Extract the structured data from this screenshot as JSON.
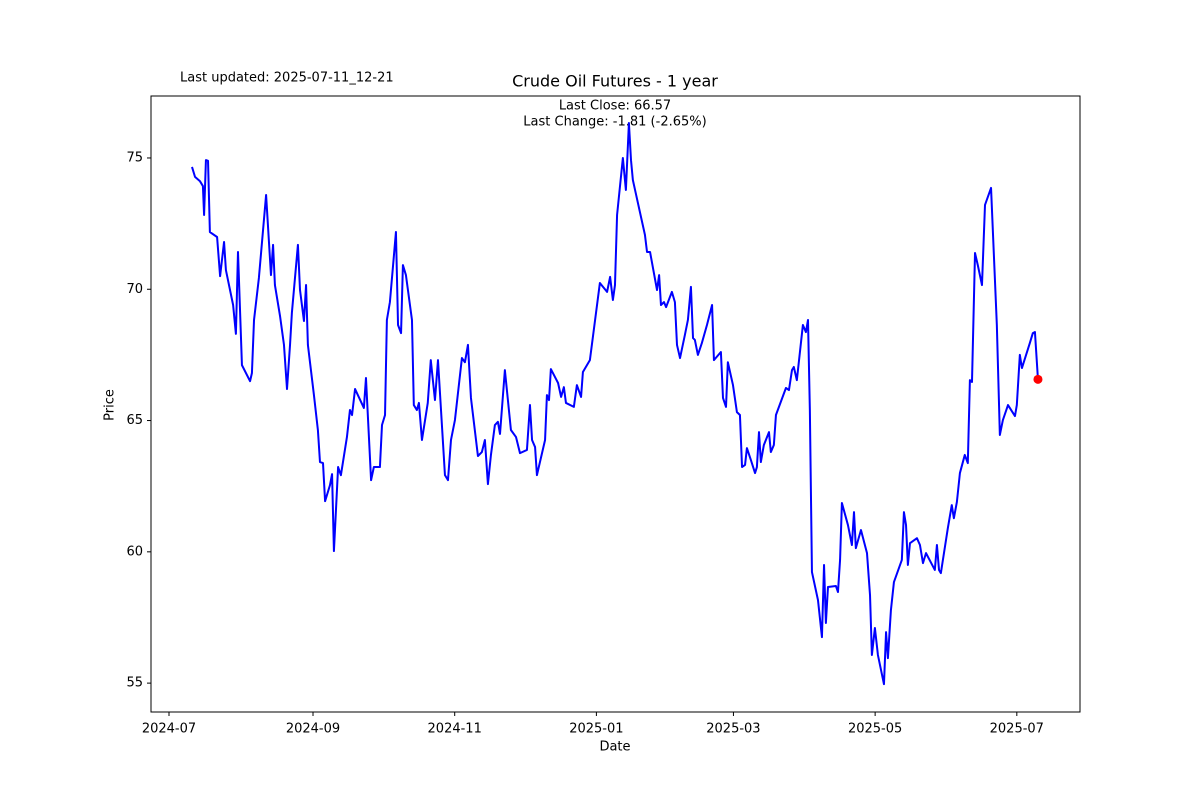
{
  "chart_data": {
    "type": "line",
    "title": "Crude Oil Futures - 1 year",
    "x_label": "Date",
    "y_label": "Price",
    "annotations": [
      "Last updated: 2025-07-11_12-21",
      "Last Close: 66.57",
      "Last Change: -1.81 (-2.65%)"
    ],
    "color": "#0000ff",
    "last_point_color": "#ff0000",
    "xlim": [
      -7.75,
      392.2
    ],
    "ylim": [
      53.9,
      77.36
    ],
    "xticks": [
      {
        "value": 0,
        "label": "2024-07"
      },
      {
        "value": 62,
        "label": "2024-09"
      },
      {
        "value": 123,
        "label": "2024-11"
      },
      {
        "value": 184,
        "label": "2025-01"
      },
      {
        "value": 243,
        "label": "2025-03"
      },
      {
        "value": 304,
        "label": "2025-05"
      },
      {
        "value": 365,
        "label": "2025-07"
      }
    ],
    "yticks": [
      55,
      60,
      65,
      70,
      75
    ],
    "x": [
      9.9,
      11.2,
      13.3,
      14.6,
      15.1,
      15.9,
      16.8,
      17.6,
      20.7,
      22.0,
      23.7,
      24.5,
      27.6,
      28.8,
      29.7,
      31.4,
      34.9,
      35.7,
      36.6,
      38.7,
      41.8,
      43.9,
      44.8,
      45.6,
      47.8,
      49.5,
      50.8,
      52.1,
      52.9,
      55.5,
      56.4,
      58.1,
      59.0,
      59.8,
      62.4,
      64.1,
      65.0,
      66.3,
      67.2,
      69.3,
      70.2,
      71.0,
      72.8,
      74.0,
      76.6,
      77.9,
      78.8,
      80.1,
      83.9,
      84.8,
      87.0,
      88.2,
      90.8,
      91.7,
      93.0,
      93.8,
      95.1,
      97.7,
      98.6,
      99.9,
      100.7,
      102.0,
      104.6,
      105.4,
      106.7,
      107.6,
      108.9,
      111.4,
      112.7,
      114.5,
      115.8,
      118.8,
      120.1,
      121.4,
      123.1,
      126.1,
      127.4,
      128.7,
      130.0,
      133.0,
      134.7,
      136.0,
      137.3,
      138.6,
      140.3,
      141.6,
      142.5,
      144.6,
      147.2,
      149.4,
      151.1,
      154.1,
      155.4,
      156.3,
      157.6,
      158.4,
      161.9,
      162.7,
      163.6,
      164.4,
      167.5,
      168.8,
      170.0,
      170.9,
      174.3,
      175.6,
      177.4,
      178.2,
      181.2,
      185.5,
      188.6,
      189.9,
      191.1,
      192.0,
      192.9,
      195.4,
      196.7,
      198.0,
      198.9,
      199.7,
      204.9,
      205.8,
      207.1,
      210.1,
      211.0,
      211.8,
      213.1,
      214.0,
      216.5,
      217.8,
      218.7,
      220.0,
      222.1,
      223.4,
      224.7,
      225.6,
      226.4,
      227.7,
      229.4,
      231.6,
      233.8,
      234.6,
      237.6,
      238.5,
      239.8,
      240.6,
      242.8,
      244.5,
      245.8,
      246.7,
      248.0,
      248.8,
      250.5,
      252.3,
      253.1,
      254.0,
      254.8,
      256.1,
      258.3,
      259.1,
      260.4,
      261.3,
      265.6,
      266.9,
      268.2,
      269.0,
      270.3,
      272.9,
      274.2,
      275.1,
      275.9,
      276.8,
      279.4,
      281.1,
      282.0,
      282.8,
      283.7,
      287.1,
      288.0,
      288.9,
      289.7,
      292.3,
      294.0,
      294.9,
      295.7,
      297.9,
      300.5,
      301.8,
      302.6,
      303.9,
      305.2,
      307.8,
      308.7,
      309.5,
      310.8,
      312.1,
      315.5,
      316.4,
      317.3,
      318.1,
      319.0,
      322.0,
      323.3,
      324.6,
      325.9,
      329.7,
      330.6,
      331.5,
      332.3,
      335.3,
      337.0,
      337.9,
      339.2,
      340.5,
      342.6,
      343.9,
      344.8,
      345.7,
      347.0,
      348.2,
      350.0,
      351.3,
      353.9,
      356.4,
      357.7,
      359.0,
      361.2,
      364.2,
      365.0,
      366.3,
      367.2,
      370.6,
      371.9,
      372.8,
      374.1
    ],
    "values": [
      74.66,
      74.28,
      74.12,
      73.93,
      72.83,
      74.92,
      74.89,
      72.18,
      71.99,
      70.5,
      71.8,
      70.73,
      69.4,
      68.3,
      71.42,
      67.11,
      66.5,
      66.81,
      68.83,
      70.43,
      73.59,
      70.54,
      71.69,
      70.16,
      68.98,
      67.88,
      66.2,
      67.88,
      69.1,
      71.69,
      69.97,
      68.79,
      70.16,
      67.88,
      65.97,
      64.64,
      63.42,
      63.38,
      61.93,
      62.54,
      62.96,
      60.03,
      63.23,
      62.92,
      64.37,
      65.4,
      65.21,
      66.2,
      65.48,
      66.62,
      62.73,
      63.23,
      63.23,
      64.83,
      65.21,
      68.83,
      69.51,
      72.18,
      68.64,
      68.33,
      70.92,
      70.54,
      68.83,
      65.59,
      65.4,
      65.67,
      64.26,
      65.67,
      67.3,
      65.78,
      67.3,
      62.92,
      62.73,
      64.26,
      65.02,
      67.38,
      67.22,
      67.88,
      65.86,
      63.65,
      63.8,
      64.26,
      62.58,
      63.69,
      64.83,
      64.95,
      64.49,
      66.92,
      64.64,
      64.37,
      63.76,
      63.88,
      65.59,
      64.26,
      63.99,
      62.92,
      64.26,
      65.97,
      65.78,
      66.96,
      66.43,
      65.9,
      66.27,
      65.67,
      65.52,
      66.35,
      65.9,
      66.85,
      67.3,
      70.24,
      69.9,
      70.47,
      69.59,
      70.16,
      72.83,
      75.0,
      73.78,
      76.33,
      74.92,
      74.16,
      72.07,
      71.42,
      71.42,
      69.97,
      70.54,
      69.4,
      69.51,
      69.32,
      69.9,
      69.51,
      67.88,
      67.38,
      68.26,
      68.83,
      70.09,
      68.14,
      68.07,
      67.5,
      67.95,
      68.64,
      69.4,
      67.3,
      67.61,
      65.86,
      65.52,
      67.22,
      66.35,
      65.32,
      65.21,
      63.23,
      63.31,
      63.95,
      63.5,
      63.0,
      63.23,
      64.56,
      63.42,
      64.07,
      64.56,
      63.8,
      64.07,
      65.21,
      66.24,
      66.16,
      66.92,
      67.04,
      66.54,
      68.64,
      68.37,
      68.83,
      65.4,
      59.23,
      58.16,
      56.75,
      59.5,
      57.29,
      58.66,
      58.7,
      58.47,
      59.69,
      61.86,
      61.02,
      60.26,
      61.51,
      60.14,
      60.83,
      59.95,
      58.35,
      56.07,
      57.1,
      56.07,
      54.96,
      56.94,
      55.95,
      57.78,
      58.85,
      59.69,
      61.51,
      61.02,
      59.5,
      60.33,
      60.52,
      60.26,
      59.57,
      59.95,
      59.31,
      60.26,
      59.31,
      59.19,
      60.9,
      61.78,
      61.28,
      61.9,
      63.0,
      63.69,
      63.38,
      66.54,
      66.47,
      71.38,
      70.92,
      70.16,
      73.21,
      73.86,
      68.64,
      64.45,
      65.02,
      65.59,
      65.17,
      65.59,
      67.5,
      67.0,
      67.95,
      68.33,
      68.37,
      66.57
    ]
  }
}
